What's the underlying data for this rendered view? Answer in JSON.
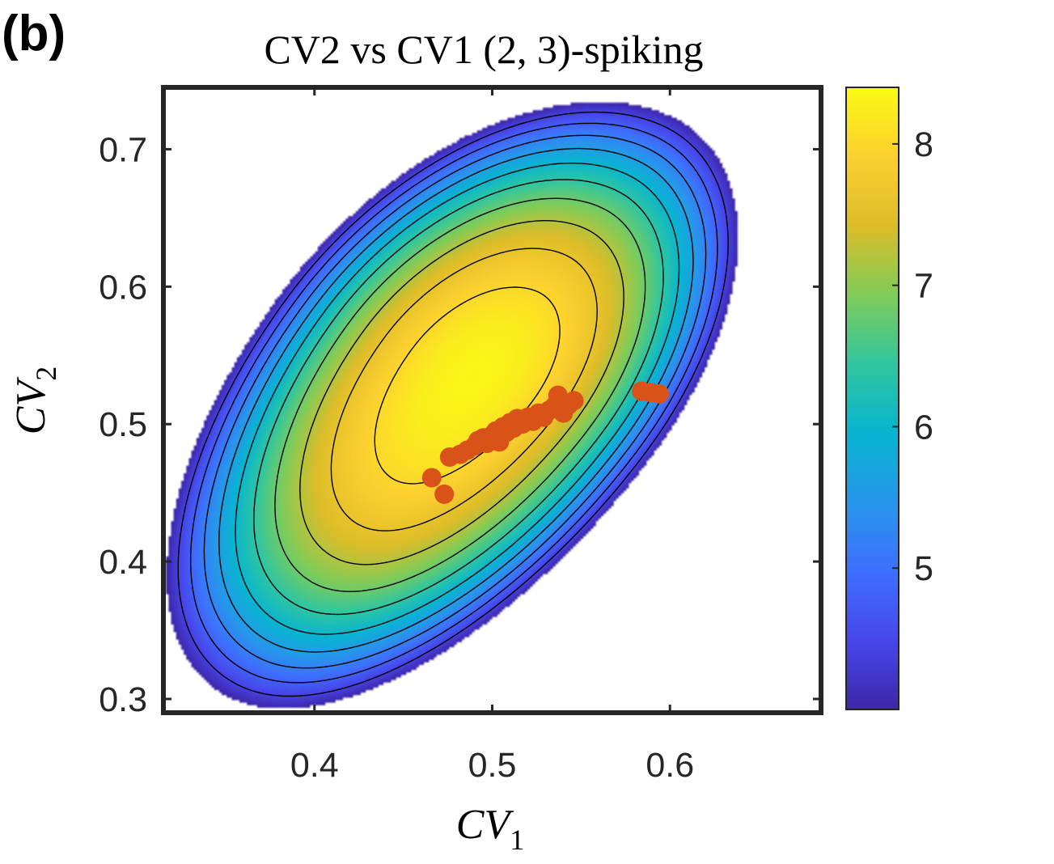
{
  "panel_label": "(b)",
  "chart_data": {
    "type": "heatmap",
    "title": "CV2 vs CV1 (2, 3)-spiking",
    "xlabel": "CV",
    "xlabel_sub": "1",
    "ylabel": "CV",
    "ylabel_sub": "2",
    "xlim": [
      0.315,
      0.685
    ],
    "ylim": [
      0.29,
      0.745
    ],
    "xticks": [
      0.4,
      0.5,
      0.6
    ],
    "xtick_labels": [
      "0.4",
      "0.5",
      "0.6"
    ],
    "yticks": [
      0.3,
      0.4,
      0.5,
      0.6,
      0.7
    ],
    "ytick_labels": [
      "0.3",
      "0.4",
      "0.5",
      "0.6",
      "0.7"
    ],
    "colormap": "parula",
    "colorbar": {
      "range": [
        4.0,
        8.4
      ],
      "ticks": [
        5,
        6,
        7,
        8
      ],
      "tick_labels": [
        "5",
        "6",
        "7",
        "8"
      ],
      "placement": "right"
    },
    "density": {
      "peak_value": 8.35,
      "min_shown_value": 4.0,
      "peak_location": {
        "x": 0.505,
        "y": 0.54
      },
      "contour_levels": [
        4.4,
        4.8,
        5.2,
        5.6,
        6.0,
        6.4,
        6.8,
        7.2,
        7.6,
        8.0
      ]
    },
    "points_color": "#D95319",
    "points": [
      {
        "x": 0.466,
        "y": 0.461
      },
      {
        "x": 0.473,
        "y": 0.449
      },
      {
        "x": 0.476,
        "y": 0.476
      },
      {
        "x": 0.482,
        "y": 0.478
      },
      {
        "x": 0.486,
        "y": 0.481
      },
      {
        "x": 0.49,
        "y": 0.484
      },
      {
        "x": 0.492,
        "y": 0.488
      },
      {
        "x": 0.495,
        "y": 0.49
      },
      {
        "x": 0.497,
        "y": 0.486
      },
      {
        "x": 0.5,
        "y": 0.492
      },
      {
        "x": 0.502,
        "y": 0.495
      },
      {
        "x": 0.504,
        "y": 0.487
      },
      {
        "x": 0.506,
        "y": 0.498
      },
      {
        "x": 0.508,
        "y": 0.494
      },
      {
        "x": 0.51,
        "y": 0.501
      },
      {
        "x": 0.512,
        "y": 0.497
      },
      {
        "x": 0.514,
        "y": 0.504
      },
      {
        "x": 0.517,
        "y": 0.5
      },
      {
        "x": 0.52,
        "y": 0.505
      },
      {
        "x": 0.523,
        "y": 0.502
      },
      {
        "x": 0.526,
        "y": 0.508
      },
      {
        "x": 0.529,
        "y": 0.505
      },
      {
        "x": 0.532,
        "y": 0.51
      },
      {
        "x": 0.535,
        "y": 0.513
      },
      {
        "x": 0.537,
        "y": 0.521
      },
      {
        "x": 0.54,
        "y": 0.508
      },
      {
        "x": 0.543,
        "y": 0.514
      },
      {
        "x": 0.546,
        "y": 0.517
      },
      {
        "x": 0.584,
        "y": 0.524
      },
      {
        "x": 0.589,
        "y": 0.523
      },
      {
        "x": 0.594,
        "y": 0.522
      }
    ]
  }
}
